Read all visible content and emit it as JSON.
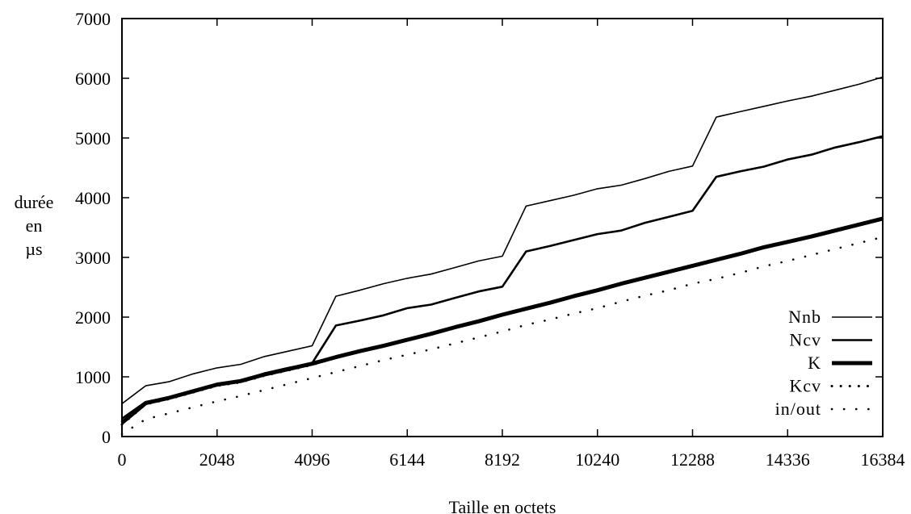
{
  "chart_data": {
    "type": "line",
    "xlabel": "Taille en octets",
    "ylabel": [
      "durée",
      "en",
      "µs"
    ],
    "xlim": [
      0,
      16384
    ],
    "ylim": [
      0,
      7000
    ],
    "xticks": [
      0,
      2048,
      4096,
      6144,
      8192,
      10240,
      12288,
      14336,
      16384
    ],
    "yticks": [
      0,
      1000,
      2000,
      3000,
      4000,
      5000,
      6000,
      7000
    ],
    "grid": false,
    "legend_position": "bottom-right",
    "series": [
      {
        "name": "Nnb",
        "style": "thin-solid",
        "points": [
          [
            0,
            550
          ],
          [
            512,
            850
          ],
          [
            1024,
            920
          ],
          [
            1536,
            1050
          ],
          [
            2048,
            1150
          ],
          [
            2560,
            1210
          ],
          [
            3072,
            1340
          ],
          [
            3584,
            1430
          ],
          [
            4096,
            1520
          ],
          [
            4608,
            2350
          ],
          [
            5120,
            2450
          ],
          [
            5632,
            2560
          ],
          [
            6144,
            2650
          ],
          [
            6656,
            2720
          ],
          [
            7168,
            2830
          ],
          [
            7680,
            2940
          ],
          [
            8192,
            3020
          ],
          [
            8704,
            3860
          ],
          [
            9216,
            3950
          ],
          [
            9728,
            4040
          ],
          [
            10240,
            4150
          ],
          [
            10752,
            4210
          ],
          [
            11264,
            4320
          ],
          [
            11776,
            4440
          ],
          [
            12288,
            4530
          ],
          [
            12800,
            5350
          ],
          [
            13312,
            5440
          ],
          [
            13824,
            5530
          ],
          [
            14336,
            5620
          ],
          [
            14848,
            5700
          ],
          [
            15360,
            5800
          ],
          [
            15872,
            5900
          ],
          [
            16384,
            6020
          ]
        ]
      },
      {
        "name": "Ncv",
        "style": "medium-solid",
        "points": [
          [
            0,
            300
          ],
          [
            512,
            580
          ],
          [
            1024,
            660
          ],
          [
            1536,
            760
          ],
          [
            2048,
            860
          ],
          [
            2560,
            930
          ],
          [
            3072,
            1060
          ],
          [
            3584,
            1150
          ],
          [
            4096,
            1230
          ],
          [
            4608,
            1860
          ],
          [
            5120,
            1940
          ],
          [
            5632,
            2030
          ],
          [
            6144,
            2150
          ],
          [
            6656,
            2210
          ],
          [
            7168,
            2320
          ],
          [
            7680,
            2430
          ],
          [
            8192,
            2510
          ],
          [
            8704,
            3100
          ],
          [
            9216,
            3190
          ],
          [
            9728,
            3290
          ],
          [
            10240,
            3390
          ],
          [
            10752,
            3450
          ],
          [
            11264,
            3580
          ],
          [
            11776,
            3680
          ],
          [
            12288,
            3780
          ],
          [
            12800,
            4350
          ],
          [
            13312,
            4440
          ],
          [
            13824,
            4520
          ],
          [
            14336,
            4640
          ],
          [
            14848,
            4720
          ],
          [
            15360,
            4840
          ],
          [
            15872,
            4930
          ],
          [
            16384,
            5030
          ]
        ]
      },
      {
        "name": "K",
        "style": "thick-solid",
        "points": [
          [
            0,
            230
          ],
          [
            512,
            560
          ],
          [
            1024,
            650
          ],
          [
            1536,
            760
          ],
          [
            2048,
            870
          ],
          [
            2560,
            930
          ],
          [
            3072,
            1040
          ],
          [
            3584,
            1130
          ],
          [
            4096,
            1220
          ],
          [
            4608,
            1330
          ],
          [
            5120,
            1430
          ],
          [
            5632,
            1520
          ],
          [
            6144,
            1620
          ],
          [
            6656,
            1720
          ],
          [
            7168,
            1830
          ],
          [
            7680,
            1930
          ],
          [
            8192,
            2040
          ],
          [
            8704,
            2140
          ],
          [
            9216,
            2240
          ],
          [
            9728,
            2350
          ],
          [
            10240,
            2450
          ],
          [
            10752,
            2560
          ],
          [
            11264,
            2660
          ],
          [
            11776,
            2760
          ],
          [
            12288,
            2860
          ],
          [
            12800,
            2960
          ],
          [
            13312,
            3060
          ],
          [
            13824,
            3170
          ],
          [
            14336,
            3260
          ],
          [
            14848,
            3350
          ],
          [
            15360,
            3450
          ],
          [
            15872,
            3550
          ],
          [
            16384,
            3650
          ]
        ]
      },
      {
        "name": "Kcv",
        "style": "medium-dotted",
        "points": [
          [
            0,
            200
          ],
          [
            512,
            540
          ],
          [
            1024,
            630
          ],
          [
            1536,
            740
          ],
          [
            2048,
            850
          ],
          [
            2560,
            910
          ],
          [
            3072,
            1020
          ],
          [
            3584,
            1110
          ],
          [
            4096,
            1200
          ],
          [
            4608,
            1320
          ],
          [
            5120,
            1420
          ],
          [
            5632,
            1510
          ],
          [
            6144,
            1610
          ],
          [
            6656,
            1710
          ],
          [
            7168,
            1820
          ],
          [
            7680,
            1920
          ],
          [
            8192,
            2030
          ],
          [
            8704,
            2130
          ],
          [
            9216,
            2230
          ],
          [
            9728,
            2340
          ],
          [
            10240,
            2440
          ],
          [
            10752,
            2550
          ],
          [
            11264,
            2650
          ],
          [
            11776,
            2750
          ],
          [
            12288,
            2850
          ],
          [
            12800,
            2950
          ],
          [
            13312,
            3050
          ],
          [
            13824,
            3160
          ],
          [
            14336,
            3250
          ],
          [
            14848,
            3340
          ],
          [
            15360,
            3440
          ],
          [
            15872,
            3540
          ],
          [
            16384,
            3640
          ]
        ]
      },
      {
        "name": "in/out",
        "style": "thin-dotted",
        "points": [
          [
            0,
            40
          ],
          [
            512,
            290
          ],
          [
            1024,
            390
          ],
          [
            1536,
            490
          ],
          [
            2048,
            590
          ],
          [
            2560,
            680
          ],
          [
            3072,
            780
          ],
          [
            3584,
            880
          ],
          [
            4096,
            980
          ],
          [
            4608,
            1080
          ],
          [
            5120,
            1180
          ],
          [
            5632,
            1280
          ],
          [
            6144,
            1370
          ],
          [
            6656,
            1460
          ],
          [
            7168,
            1560
          ],
          [
            7680,
            1660
          ],
          [
            8192,
            1760
          ],
          [
            8704,
            1870
          ],
          [
            9216,
            1960
          ],
          [
            9728,
            2060
          ],
          [
            10240,
            2150
          ],
          [
            10752,
            2260
          ],
          [
            11264,
            2360
          ],
          [
            11776,
            2450
          ],
          [
            12288,
            2560
          ],
          [
            12800,
            2640
          ],
          [
            13312,
            2740
          ],
          [
            13824,
            2850
          ],
          [
            14336,
            2940
          ],
          [
            14848,
            3040
          ],
          [
            15360,
            3140
          ],
          [
            15872,
            3240
          ],
          [
            16384,
            3340
          ]
        ]
      }
    ]
  }
}
